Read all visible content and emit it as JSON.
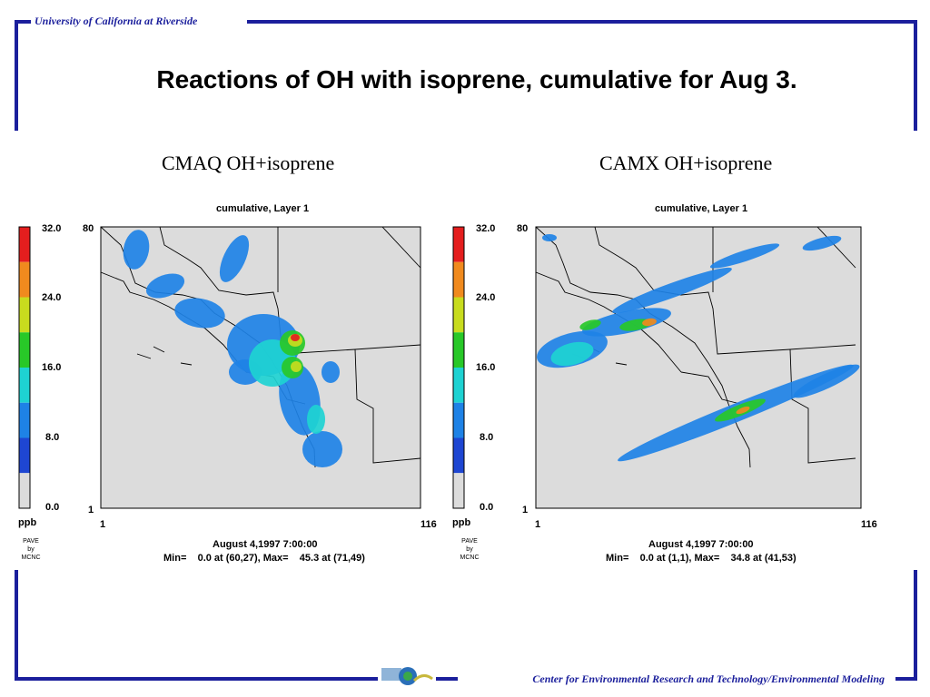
{
  "header": {
    "university": "University of California at Riverside"
  },
  "slide": {
    "title": "Reactions of OH with isoprene, cumulative for Aug 3."
  },
  "footer": {
    "center": "Center for Environmental Research and Technology/Environmental Modeling"
  },
  "colors": {
    "frame": "#1b1f9c",
    "map_bg": "#dcdcdc"
  },
  "chart_data": [
    {
      "type": "heatmap",
      "title": "CMAQ  OH+isoprene",
      "subtitle": "cumulative, Layer 1",
      "colorbar": {
        "ticks": [
          "32.0",
          "24.0",
          "16.0",
          "8.0",
          "0.0"
        ],
        "unit": "ppb",
        "colors": [
          "#e41e1e",
          "#f08a1e",
          "#c8dc1e",
          "#28c828",
          "#1ed2d2",
          "#1e82e6",
          "#1e46d2",
          "#dcdcdc"
        ]
      },
      "axes": {
        "x": [
          "1",
          "116"
        ],
        "y": [
          "80",
          "1"
        ]
      },
      "footer": {
        "date": "August 4,1997 7:00:00",
        "minmax": "Min=    0.0 at (60,27), Max=    45.3 at (71,49)"
      },
      "credit": [
        "PAVE",
        "by",
        "MCNC"
      ],
      "min": {
        "value": 0.0,
        "at": [
          60,
          27
        ]
      },
      "max": {
        "value": 45.3,
        "at": [
          71,
          49
        ]
      }
    },
    {
      "type": "heatmap",
      "title": "CAMX  OH+isoprene",
      "subtitle": "cumulative, Layer 1",
      "colorbar": {
        "ticks": [
          "32.0",
          "24.0",
          "16.0",
          "8.0",
          "0.0"
        ],
        "unit": "ppb",
        "colors": [
          "#e41e1e",
          "#f08a1e",
          "#c8dc1e",
          "#28c828",
          "#1ed2d2",
          "#1e82e6",
          "#1e46d2",
          "#dcdcdc"
        ]
      },
      "axes": {
        "x": [
          "1",
          "116"
        ],
        "y": [
          "80",
          "1"
        ]
      },
      "footer": {
        "date": "August 4,1997 7:00:00",
        "minmax": "Min=    0.0 at (1,1), Max=    34.8 at (41,53)"
      },
      "credit": [
        "PAVE",
        "by",
        "MCNC"
      ],
      "min": {
        "value": 0.0,
        "at": [
          1,
          1
        ]
      },
      "max": {
        "value": 34.8,
        "at": [
          41,
          53
        ]
      }
    }
  ]
}
